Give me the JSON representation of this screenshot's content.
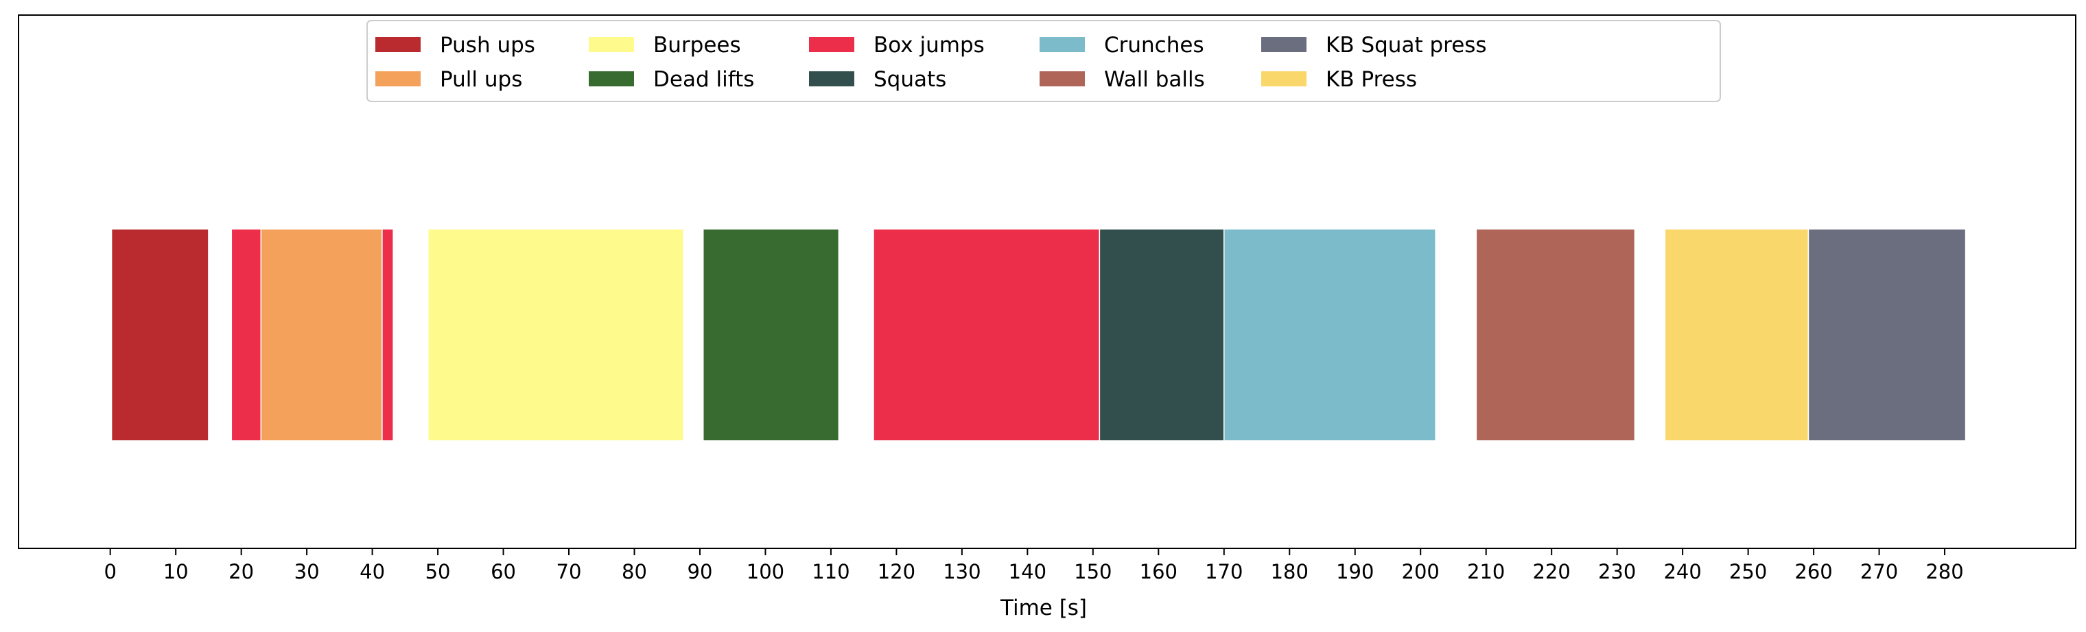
{
  "chart_data": {
    "type": "bar",
    "orientation": "horizontal-timeline",
    "title": "",
    "xlabel": "Time [s]",
    "ylabel": "",
    "xlim": [
      -14,
      300
    ],
    "x_ticks": [
      0,
      10,
      20,
      30,
      40,
      50,
      60,
      70,
      80,
      90,
      100,
      110,
      120,
      130,
      140,
      150,
      160,
      170,
      180,
      190,
      200,
      210,
      220,
      230,
      240,
      250,
      260,
      270,
      280
    ],
    "grid": false,
    "legend_position": "top-center",
    "legend": [
      {
        "label": "Push ups",
        "color": "#b92b2e"
      },
      {
        "label": "Pull ups",
        "color": "#f4a15c"
      },
      {
        "label": "Burpees",
        "color": "#fefa8b"
      },
      {
        "label": "Dead lifts",
        "color": "#376b30"
      },
      {
        "label": "Box jumps",
        "color": "#ed2e4a"
      },
      {
        "label": "Squats",
        "color": "#324f4e"
      },
      {
        "label": "Crunches",
        "color": "#7cbbca"
      },
      {
        "label": "Wall balls",
        "color": "#b06559"
      },
      {
        "label": "KB Squat press",
        "color": "#6b6e7e"
      },
      {
        "label": "KB Press",
        "color": "#fad76a"
      }
    ],
    "segments": [
      {
        "exercise": "Push ups",
        "start": 0.2,
        "end": 15.0,
        "color": "#b92b2e"
      },
      {
        "exercise": "Box jumps",
        "start": 18.5,
        "end": 23.0,
        "color": "#ed2e4a"
      },
      {
        "exercise": "Pull ups",
        "start": 23.0,
        "end": 41.5,
        "color": "#f4a15c"
      },
      {
        "exercise": "Box jumps",
        "start": 41.5,
        "end": 43.2,
        "color": "#ed2e4a"
      },
      {
        "exercise": "Burpees",
        "start": 48.5,
        "end": 87.5,
        "color": "#fefa8b"
      },
      {
        "exercise": "Dead lifts",
        "start": 90.5,
        "end": 111.2,
        "color": "#376b30"
      },
      {
        "exercise": "Box jumps",
        "start": 116.5,
        "end": 151.0,
        "color": "#ed2e4a"
      },
      {
        "exercise": "Squats",
        "start": 151.0,
        "end": 170.0,
        "color": "#324f4e"
      },
      {
        "exercise": "Crunches",
        "start": 170.0,
        "end": 202.3,
        "color": "#7cbbca"
      },
      {
        "exercise": "Wall balls",
        "start": 208.5,
        "end": 232.7,
        "color": "#b06559"
      },
      {
        "exercise": "KB Press",
        "start": 237.3,
        "end": 259.2,
        "color": "#fad76a"
      },
      {
        "exercise": "KB Squat press",
        "start": 259.2,
        "end": 283.2,
        "color": "#6b6e7e"
      }
    ]
  }
}
